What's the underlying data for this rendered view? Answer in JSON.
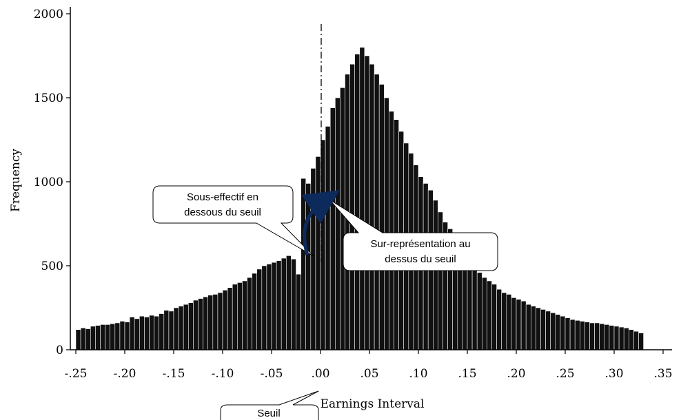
{
  "chart_data": {
    "type": "bar",
    "xlabel": "Earnings Interval",
    "ylabel": "Frequency",
    "ylim": [
      0,
      2000
    ],
    "xlim": [
      -0.25,
      0.35
    ],
    "x_ticks": [
      "-.25",
      "-.20",
      "-.15",
      "-.10",
      "-.05",
      ".00",
      ".05",
      ".10",
      ".15",
      ".20",
      ".25",
      ".30",
      ".35"
    ],
    "y_ticks": [
      "0",
      "500",
      "1000",
      "1500",
      "2000"
    ],
    "threshold_x": 0.0,
    "bin_width": 0.005,
    "x_start": -0.25,
    "values": [
      120,
      130,
      125,
      140,
      145,
      150,
      150,
      155,
      160,
      170,
      165,
      195,
      185,
      200,
      195,
      205,
      200,
      215,
      235,
      230,
      250,
      260,
      270,
      280,
      295,
      305,
      315,
      325,
      330,
      340,
      355,
      370,
      390,
      400,
      410,
      430,
      455,
      480,
      500,
      510,
      520,
      530,
      545,
      560,
      540,
      450,
      1020,
      990,
      1080,
      1150,
      1250,
      1330,
      1440,
      1500,
      1560,
      1640,
      1700,
      1760,
      1800,
      1750,
      1700,
      1640,
      1580,
      1500,
      1420,
      1370,
      1300,
      1230,
      1170,
      1100,
      1030,
      990,
      950,
      890,
      820,
      760,
      720,
      650,
      600,
      550,
      520,
      490,
      460,
      430,
      410,
      390,
      360,
      340,
      330,
      310,
      300,
      290,
      270,
      260,
      250,
      240,
      230,
      220,
      210,
      200,
      190,
      180,
      175,
      170,
      165,
      160,
      160,
      155,
      150,
      145,
      140,
      135,
      130,
      120,
      110,
      100
    ],
    "annotations": [
      {
        "name": "sous-effectif",
        "text_lines": [
          "Sous-effectif en",
          "dessous du seuil"
        ]
      },
      {
        "name": "sur-representation",
        "text_lines": [
          "Sur-représentation au",
          "dessus du seuil"
        ]
      },
      {
        "name": "seuil",
        "text_lines": [
          "Seuil"
        ]
      }
    ]
  }
}
